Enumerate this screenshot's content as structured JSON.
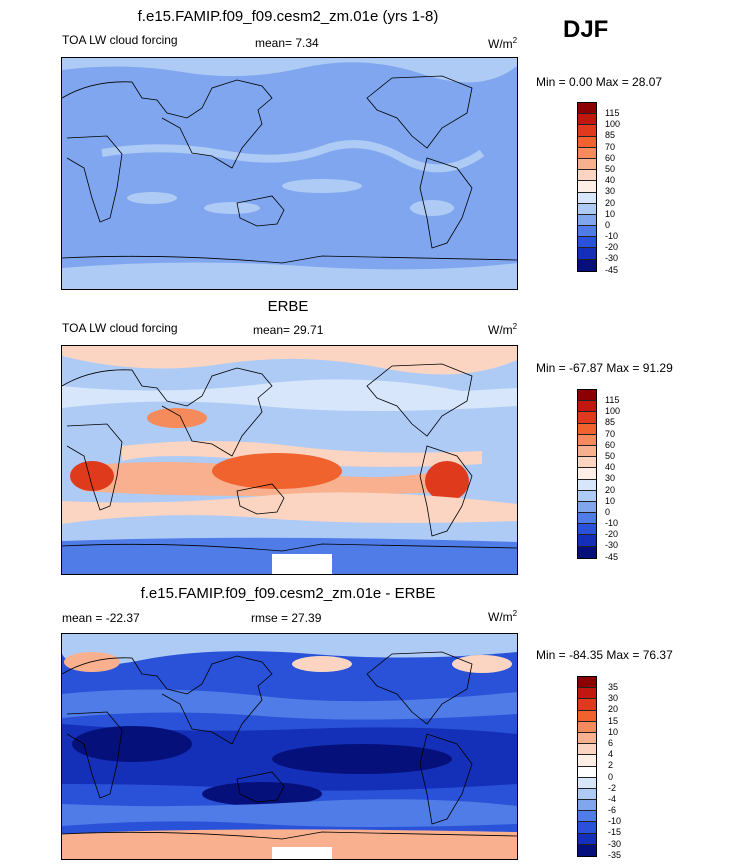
{
  "season": "DJF",
  "panels": [
    {
      "title": "f.e15.FAMIP.f09_f09.cesm2_zm.01e (yrs 1-8)",
      "left_label": "TOA LW cloud forcing",
      "center_label": "mean=   7.34",
      "units": "W/m",
      "units_sup": "2",
      "minmax": "Min =   0.00 Max =  28.07",
      "colorbar_ticks": [
        "115",
        "100",
        "85",
        "70",
        "60",
        "50",
        "40",
        "30",
        "20",
        "10",
        "0",
        "-10",
        "-20",
        "-30",
        "-45"
      ]
    },
    {
      "title": "ERBE",
      "left_label": "TOA LW cloud forcing",
      "center_label": "mean=  29.71",
      "units": "W/m",
      "units_sup": "2",
      "minmax": "Min = -67.87 Max =  91.29",
      "colorbar_ticks": [
        "115",
        "100",
        "85",
        "70",
        "60",
        "50",
        "40",
        "30",
        "20",
        "10",
        "0",
        "-10",
        "-20",
        "-30",
        "-45"
      ]
    },
    {
      "title": "f.e15.FAMIP.f09_f09.cesm2_zm.01e - ERBE",
      "left_label": "mean = -22.37",
      "center_label": "rmse =  27.39",
      "units": "W/m",
      "units_sup": "2",
      "minmax": "Min = -84.35 Max =  76.37",
      "colorbar_ticks": [
        "35",
        "30",
        "20",
        "15",
        "10",
        "6",
        "4",
        "2",
        "0",
        "-2",
        "-4",
        "-6",
        "-10",
        "-15",
        "-30",
        "-35"
      ]
    }
  ],
  "colors": {
    "abs_scale": [
      "#8b0000",
      "#c0180f",
      "#e03a1c",
      "#f0622e",
      "#f58b5a",
      "#f8b08f",
      "#fbd5c2",
      "#fdeee6",
      "#d7e6fb",
      "#aecbf6",
      "#7fa6ee",
      "#4f7ce6",
      "#2a52d8",
      "#1530b8",
      "#05107a"
    ],
    "diff_scale": [
      "#8b0000",
      "#c0180f",
      "#e03a1c",
      "#f0622e",
      "#f58b5a",
      "#f8b08f",
      "#fbd5c2",
      "#fdeee6",
      "#ffffff",
      "#d7e6fb",
      "#aecbf6",
      "#7fa6ee",
      "#4f7ce6",
      "#2a52d8",
      "#1530b8",
      "#05107a"
    ]
  }
}
